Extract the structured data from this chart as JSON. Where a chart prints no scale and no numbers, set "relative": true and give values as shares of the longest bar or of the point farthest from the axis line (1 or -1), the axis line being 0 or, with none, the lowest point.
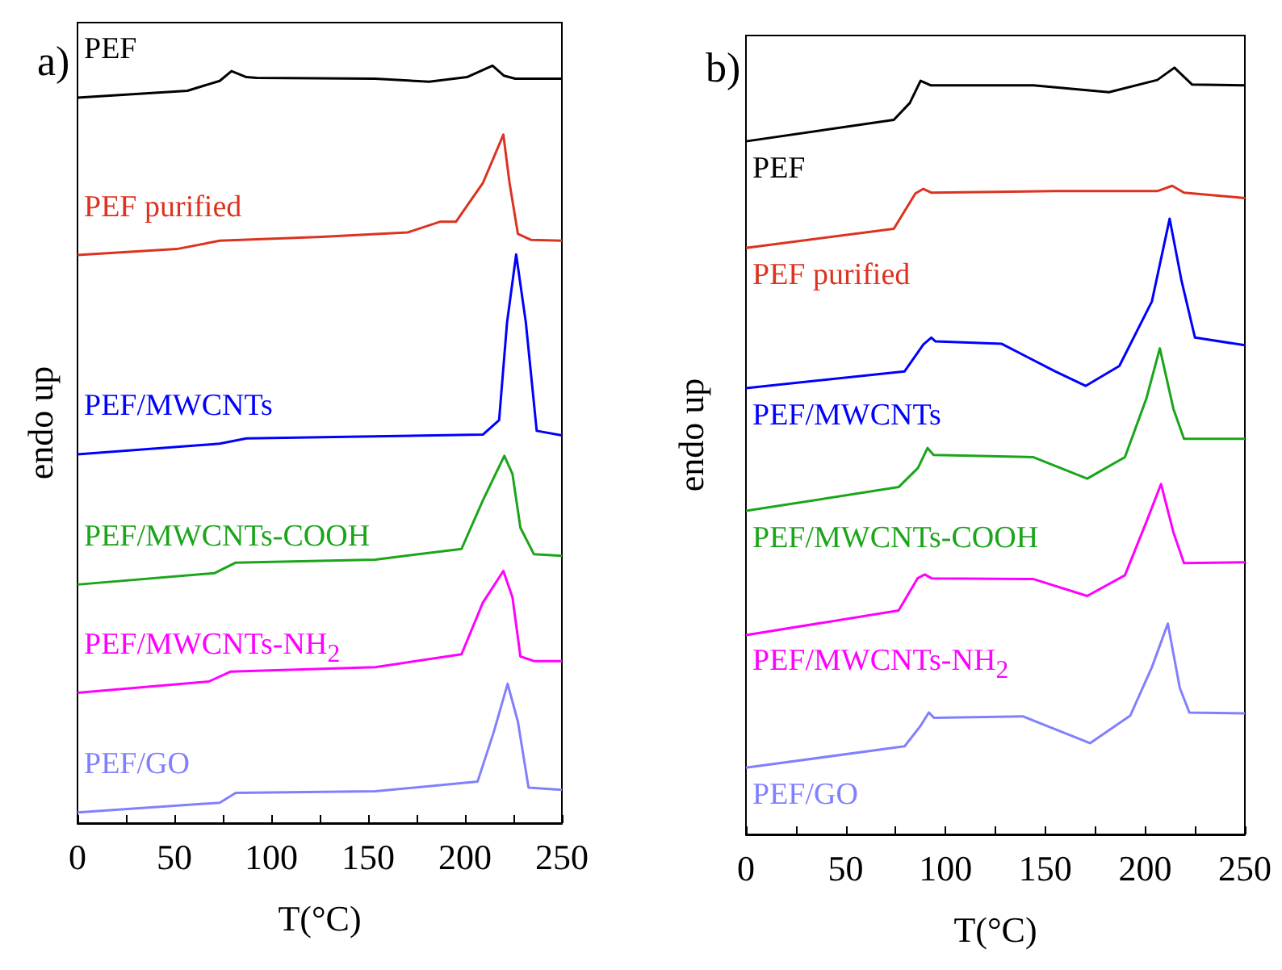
{
  "chart_data": [
    {
      "type": "line",
      "title": "a)",
      "xlabel": "T(°C)",
      "ylabel": "endo up",
      "relative": true,
      "xlim": [
        0,
        250
      ],
      "xticks": [
        0,
        {
          "value": 25,
          "label": null
        },
        50,
        {
          "value": 75,
          "label": null
        },
        100,
        {
          "value": 125,
          "label": null
        },
        150,
        {
          "value": 175,
          "label": null
        },
        200,
        {
          "value": 225,
          "label": null
        },
        250
      ],
      "series": [
        {
          "name": "PEF",
          "color": "#000000",
          "x": [
            0,
            56.7,
            73.4,
            79.5,
            87.2,
            92.5,
            153.5,
            181.5,
            201,
            214.2,
            220,
            225.9,
            250
          ],
          "values": [
            0.958,
            0.967,
            0.98,
            0.993,
            0.985,
            0.984,
            0.983,
            0.979,
            0.985,
            1.0,
            0.987,
            0.983,
            0.983
          ]
        },
        {
          "name": "PEF purified",
          "color": "#dc3220",
          "x": [
            0,
            51.2,
            73.4,
            126,
            170.4,
            187,
            195.3,
            209.2,
            219.8,
            223,
            227.3,
            234.2,
            250
          ],
          "values": [
            0.75,
            0.758,
            0.769,
            0.774,
            0.78,
            0.794,
            0.794,
            0.845,
            0.909,
            0.845,
            0.778,
            0.77,
            0.769
          ]
        },
        {
          "name": "PEF/MWCNTs",
          "color": "#0000ff",
          "x": [
            0,
            73.4,
            87.2,
            209.2,
            217.6,
            221.7,
            226.4,
            231.4,
            237,
            250
          ],
          "values": [
            0.487,
            0.501,
            0.508,
            0.513,
            0.532,
            0.661,
            0.751,
            0.661,
            0.518,
            0.512
          ]
        },
        {
          "name": "PEF/MWCNTs-COOH",
          "color": "#1aa51a",
          "x": [
            0,
            70.6,
            81.7,
            153.7,
            198.2,
            209.2,
            220.3,
            224.5,
            228.6,
            235.6,
            250
          ],
          "values": [
            0.315,
            0.33,
            0.344,
            0.348,
            0.362,
            0.426,
            0.485,
            0.461,
            0.39,
            0.355,
            0.353
          ]
        },
        {
          "name": "PEF/MWCNTs-NH$_{2}$",
          "color": "#ff00ff",
          "x": [
            0,
            67.8,
            78.9,
            153.7,
            198.2,
            209.2,
            219.8,
            224.5,
            228.6,
            235.6,
            250
          ],
          "values": [
            0.172,
            0.187,
            0.2,
            0.206,
            0.223,
            0.291,
            0.333,
            0.298,
            0.22,
            0.214,
            0.214
          ]
        },
        {
          "name": "PEF/GO",
          "color": "#8080ff",
          "x": [
            0,
            73.4,
            81.7,
            153.7,
            206.5,
            214.8,
            222,
            227.3,
            232.8,
            250
          ],
          "values": [
            0.014,
            0.027,
            0.04,
            0.042,
            0.055,
            0.12,
            0.184,
            0.134,
            0.047,
            0.044
          ]
        }
      ]
    },
    {
      "type": "line",
      "title": "b)",
      "xlabel": "T(°C)",
      "ylabel": "endo up",
      "relative": true,
      "xlim": [
        0,
        250
      ],
      "xticks": [
        0,
        {
          "value": 25,
          "label": null
        },
        50,
        {
          "value": 75,
          "label": null
        },
        100,
        {
          "value": 125,
          "label": null
        },
        150,
        {
          "value": 175,
          "label": null
        },
        200,
        {
          "value": 225,
          "label": null
        },
        250
      ],
      "series": [
        {
          "name": "PEF",
          "color": "#000000",
          "x": [
            0,
            74.1,
            82.1,
            87.5,
            92.7,
            144.1,
            181.9,
            206.1,
            214.7,
            223.6,
            250
          ],
          "values": [
            0.904,
            0.932,
            0.954,
            0.983,
            0.977,
            0.977,
            0.968,
            0.984,
            1.0,
            0.978,
            0.977
          ]
        },
        {
          "name": "PEF purified",
          "color": "#dc3220",
          "x": [
            0,
            74.1,
            84.9,
            88.9,
            93,
            154.9,
            206.1,
            213.6,
            219.5,
            250
          ],
          "values": [
            0.765,
            0.79,
            0.836,
            0.842,
            0.837,
            0.839,
            0.839,
            0.846,
            0.837,
            0.83
          ]
        },
        {
          "name": "PEF/MWCNTs",
          "color": "#0000ff",
          "x": [
            0,
            79.5,
            88.9,
            92.9,
            95,
            128,
            154.9,
            170.2,
            187.1,
            203.4,
            212.3,
            218.2,
            225,
            250
          ],
          "values": [
            0.582,
            0.604,
            0.639,
            0.648,
            0.643,
            0.64,
            0.604,
            0.585,
            0.611,
            0.695,
            0.803,
            0.723,
            0.648,
            0.638
          ]
        },
        {
          "name": "PEF/MWCNTs-COOH",
          "color": "#1aa51a",
          "x": [
            0,
            76.5,
            86.2,
            91,
            94,
            144.1,
            171,
            189.9,
            200.7,
            207.4,
            214.2,
            219.5,
            250
          ],
          "values": [
            0.422,
            0.453,
            0.478,
            0.504,
            0.495,
            0.492,
            0.464,
            0.492,
            0.569,
            0.634,
            0.555,
            0.516,
            0.516
          ]
        },
        {
          "name": "PEF/MWCNTs-NH$_{2}$",
          "color": "#ff00ff",
          "x": [
            0,
            76.5,
            86,
            89.6,
            93,
            144.1,
            171,
            189.9,
            200.7,
            208,
            214.2,
            219.5,
            250
          ],
          "values": [
            0.26,
            0.292,
            0.334,
            0.339,
            0.334,
            0.333,
            0.311,
            0.338,
            0.408,
            0.457,
            0.394,
            0.354,
            0.355
          ]
        },
        {
          "name": "PEF/GO",
          "color": "#8080ff",
          "x": [
            0,
            79.5,
            87.6,
            91.6,
            94.3,
            138.7,
            172.4,
            192.6,
            203.4,
            211.4,
            217.4,
            222.2,
            250
          ],
          "values": [
            0.087,
            0.115,
            0.142,
            0.159,
            0.152,
            0.154,
            0.119,
            0.155,
            0.218,
            0.275,
            0.191,
            0.159,
            0.158
          ]
        }
      ]
    }
  ]
}
